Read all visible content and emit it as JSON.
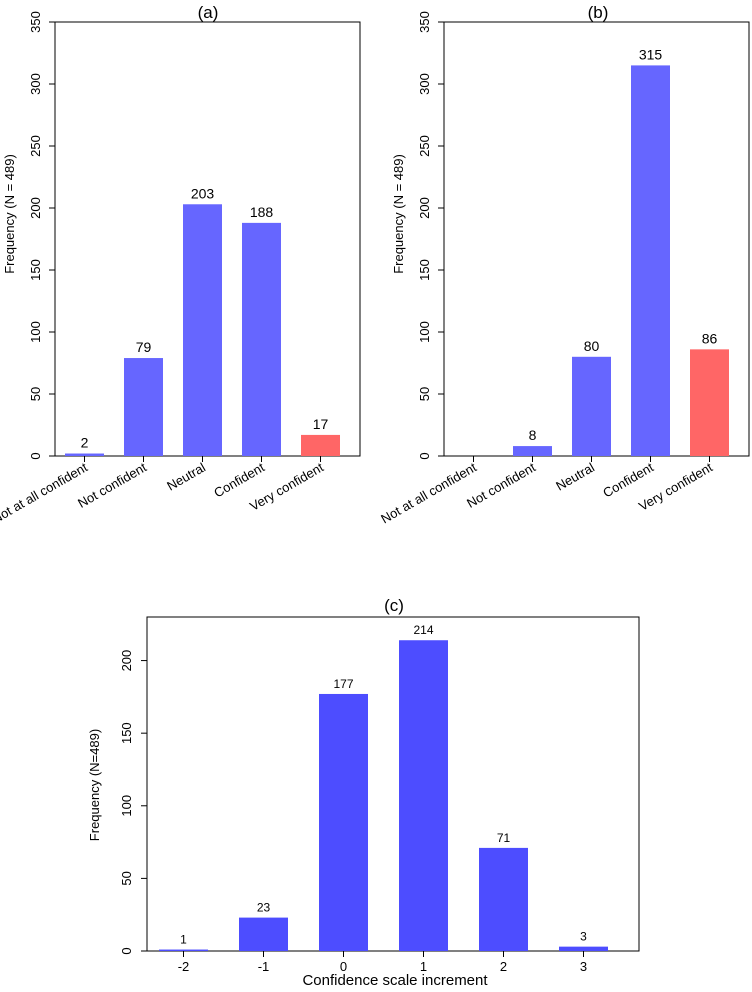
{
  "chart_data": [
    {
      "id": "a",
      "type": "bar",
      "title": "(a)",
      "xlabel": "",
      "ylabel": "Frequency (N = 489)",
      "ylim": [
        0,
        350
      ],
      "yticks": [
        0,
        50,
        100,
        150,
        200,
        250,
        300,
        350
      ],
      "categories": [
        "Not at all confident",
        "Not confident",
        "Neutral",
        "Confident",
        "Very confident"
      ],
      "values": [
        2,
        79,
        203,
        188,
        17
      ],
      "labels": [
        "2",
        "79",
        "203",
        "188",
        "17"
      ],
      "colors": [
        "#6666ff",
        "#6666ff",
        "#6666ff",
        "#6666ff",
        "#ff6666"
      ]
    },
    {
      "id": "b",
      "type": "bar",
      "title": "(b)",
      "xlabel": "",
      "ylabel": "Frequency (N = 489)",
      "ylim": [
        0,
        350
      ],
      "yticks": [
        0,
        50,
        100,
        150,
        200,
        250,
        300,
        350
      ],
      "categories": [
        "Not at all confident",
        "Not confident",
        "Neutral",
        "Confident",
        "Very confident"
      ],
      "values": [
        0,
        8,
        80,
        315,
        86
      ],
      "labels": [
        "",
        "8",
        "80",
        "315",
        "86"
      ],
      "colors": [
        "#6666ff",
        "#6666ff",
        "#6666ff",
        "#6666ff",
        "#ff6666"
      ]
    },
    {
      "id": "c",
      "type": "bar",
      "title": "(c)",
      "xlabel": "Confidence scale increment",
      "ylabel": "Frequency (N=489)",
      "ylim": [
        0,
        230
      ],
      "yticks": [
        0,
        50,
        100,
        150,
        200
      ],
      "categories": [
        "-2",
        "-1",
        "0",
        "1",
        "2",
        "3"
      ],
      "values": [
        1,
        23,
        177,
        214,
        71,
        3
      ],
      "labels": [
        "1",
        "23",
        "177",
        "214",
        "71",
        "3"
      ],
      "colors": [
        "#4d4dff",
        "#4d4dff",
        "#4d4dff",
        "#4d4dff",
        "#4d4dff",
        "#4d4dff"
      ]
    }
  ]
}
